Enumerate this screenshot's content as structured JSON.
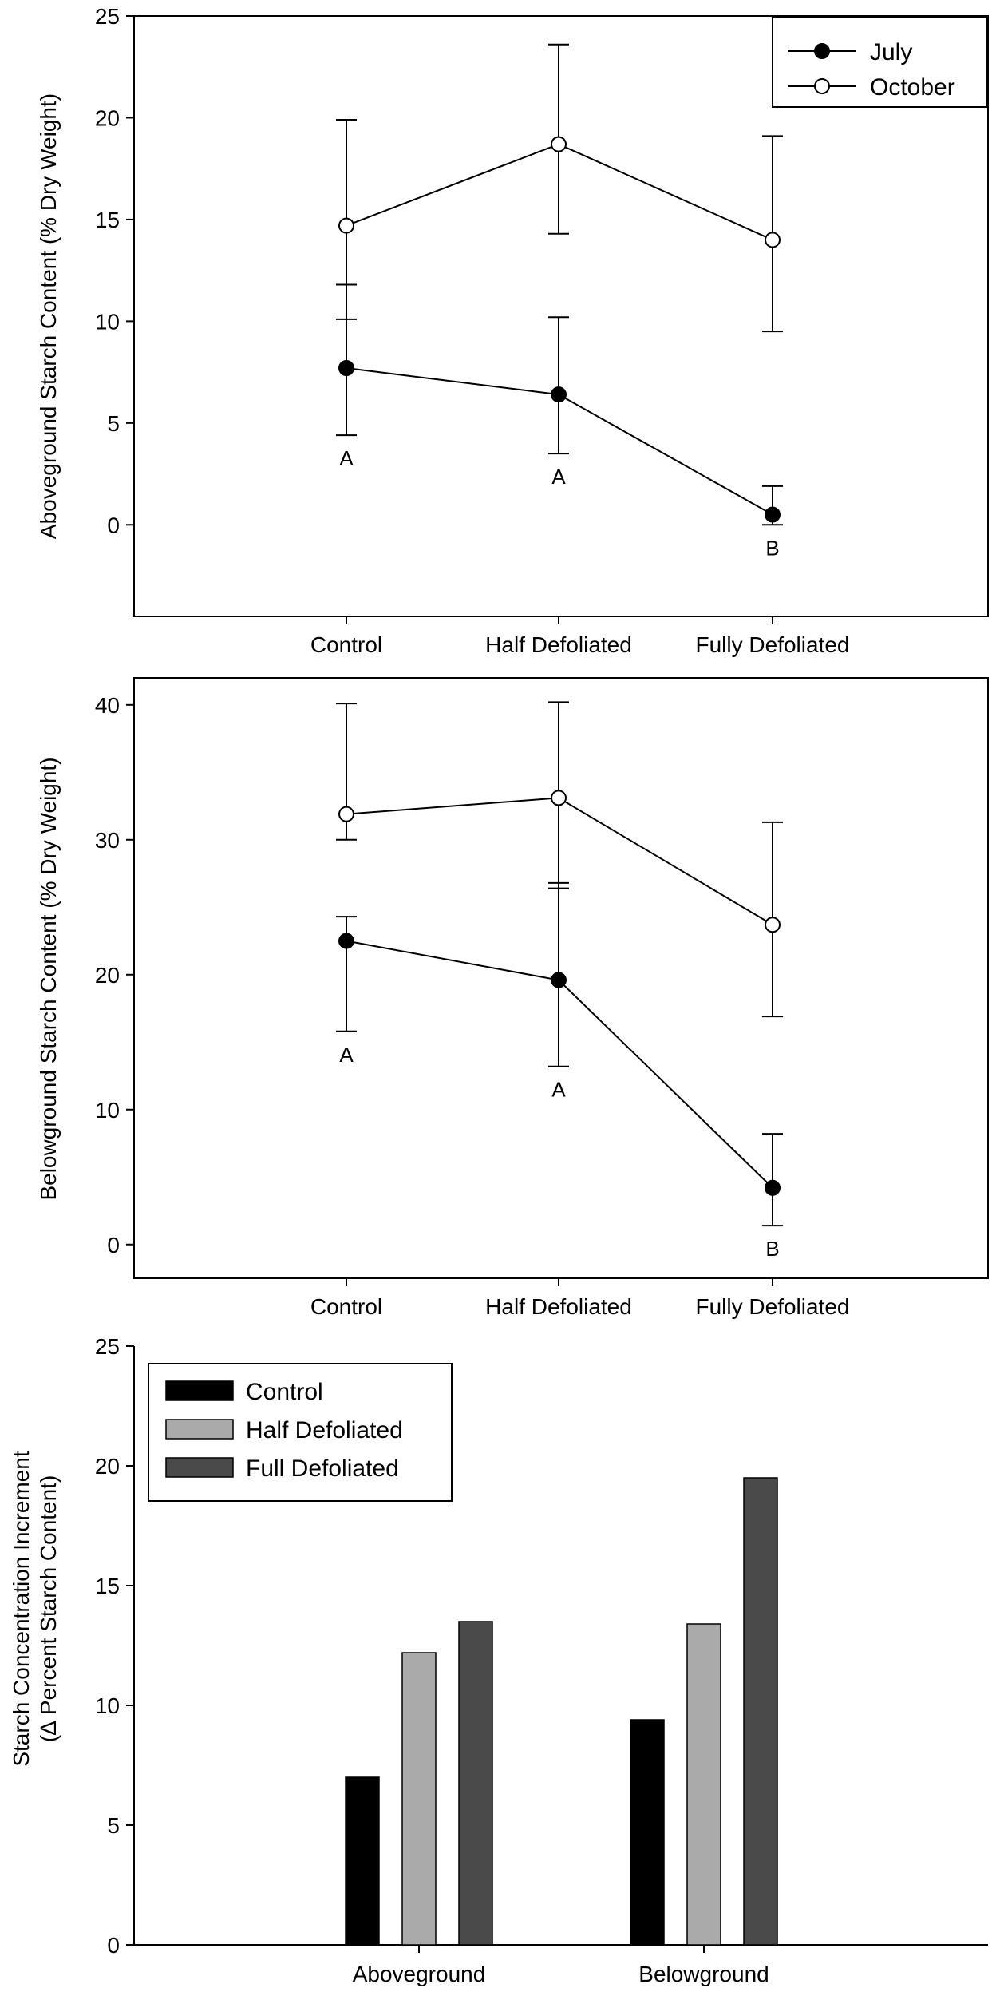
{
  "chart_data": [
    {
      "type": "line",
      "title": "",
      "xlabel": "",
      "ylabel": "Aboveground Starch Content (% Dry Weight)",
      "categories": [
        "Control",
        "Half Defoliated",
        "Fully Defoliated"
      ],
      "ylim": [
        -4.5,
        25
      ],
      "yticks": [
        0,
        5,
        10,
        15,
        20,
        25
      ],
      "legend": "top-right",
      "series": [
        {
          "name": "July",
          "marker": "filled-circle",
          "values": [
            7.7,
            6.4,
            0.5
          ],
          "err_low": [
            4.4,
            3.5,
            0.0
          ],
          "err_high": [
            11.8,
            10.2,
            1.9
          ],
          "letters": [
            "A",
            "A",
            "B"
          ]
        },
        {
          "name": "October",
          "marker": "open-circle",
          "values": [
            14.7,
            18.7,
            14.0
          ],
          "err_low": [
            10.1,
            14.3,
            9.5
          ],
          "err_high": [
            19.9,
            23.6,
            19.1
          ]
        }
      ]
    },
    {
      "type": "line",
      "title": "",
      "xlabel": "",
      "ylabel": "Belowground Starch Content (% Dry Weight)",
      "categories": [
        "Control",
        "Half Defoliated",
        "Fully Defoliated"
      ],
      "ylim": [
        -2.5,
        42
      ],
      "yticks": [
        0,
        10,
        20,
        30,
        40
      ],
      "legend": "none",
      "series": [
        {
          "name": "July",
          "marker": "filled-circle",
          "values": [
            22.5,
            19.6,
            4.2
          ],
          "err_low": [
            15.8,
            13.2,
            1.4
          ],
          "err_high": [
            24.3,
            26.8,
            8.2
          ],
          "letters": [
            "A",
            "A",
            "B"
          ]
        },
        {
          "name": "October",
          "marker": "open-circle",
          "values": [
            31.9,
            33.1,
            23.7
          ],
          "err_low": [
            30.0,
            26.4,
            16.9
          ],
          "err_high": [
            40.1,
            40.2,
            31.3
          ]
        }
      ]
    },
    {
      "type": "bar",
      "title": "",
      "xlabel": "",
      "ylabel": [
        "Starch Concentration Increment",
        "(∆ Percent Starch Content)"
      ],
      "categories": [
        "Aboveground",
        "Belowground"
      ],
      "ylim": [
        0,
        25
      ],
      "yticks": [
        0,
        5,
        10,
        15,
        20,
        25
      ],
      "legend": "top-left",
      "series": [
        {
          "name": "Control",
          "color": "#000000",
          "values": [
            7.0,
            9.4
          ]
        },
        {
          "name": "Half Defoliated",
          "color": "#aaaaaa",
          "values": [
            12.2,
            13.4
          ]
        },
        {
          "name": "Full Defoliated",
          "color": "#4a4a4a",
          "values": [
            13.5,
            19.5
          ]
        }
      ]
    }
  ]
}
